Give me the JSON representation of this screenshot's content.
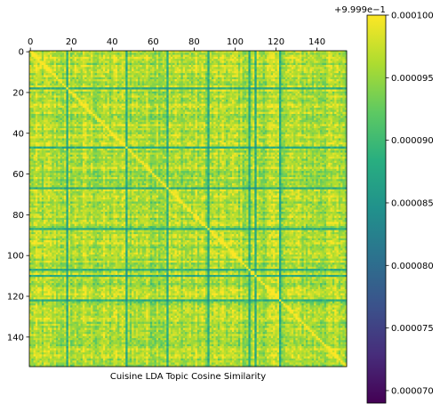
{
  "chart_data": {
    "type": "heatmap",
    "title": "",
    "xlabel": "Cuisine LDA Topic Cosine Similarity",
    "ylabel": "",
    "matrix_size": 155,
    "xlim": [
      0,
      155
    ],
    "ylim": [
      155,
      0
    ],
    "x_ticks": [
      0,
      20,
      40,
      60,
      80,
      100,
      120,
      140
    ],
    "y_ticks": [
      0,
      20,
      40,
      60,
      80,
      100,
      120,
      140
    ],
    "x_tick_labels": [
      "0",
      "20",
      "40",
      "60",
      "80",
      "100",
      "120",
      "140"
    ],
    "y_tick_labels": [
      "0",
      "20",
      "40",
      "60",
      "80",
      "100",
      "120",
      "140"
    ],
    "x_axis_position": "top",
    "grid": false,
    "colormap": "viridis",
    "value_offset": 0.9999,
    "value_range": [
      6.9e-05,
      0.0001
    ],
    "diagonal_value": 0.0001,
    "typical_value": 9.6e-05,
    "low_similarity_rows": [
      18,
      47,
      67,
      87,
      107,
      110,
      122
    ],
    "low_similarity_value": 8.8e-05,
    "colorbar": {
      "offset_label": "+9.999e−1",
      "ticks": [
        7e-05,
        7.5e-05,
        8e-05,
        8.5e-05,
        9e-05,
        9.5e-05,
        0.0001
      ],
      "tick_labels": [
        "0.000070",
        "0.000075",
        "0.000080",
        "0.000085",
        "0.000090",
        "0.000095",
        "0.000100"
      ]
    }
  }
}
